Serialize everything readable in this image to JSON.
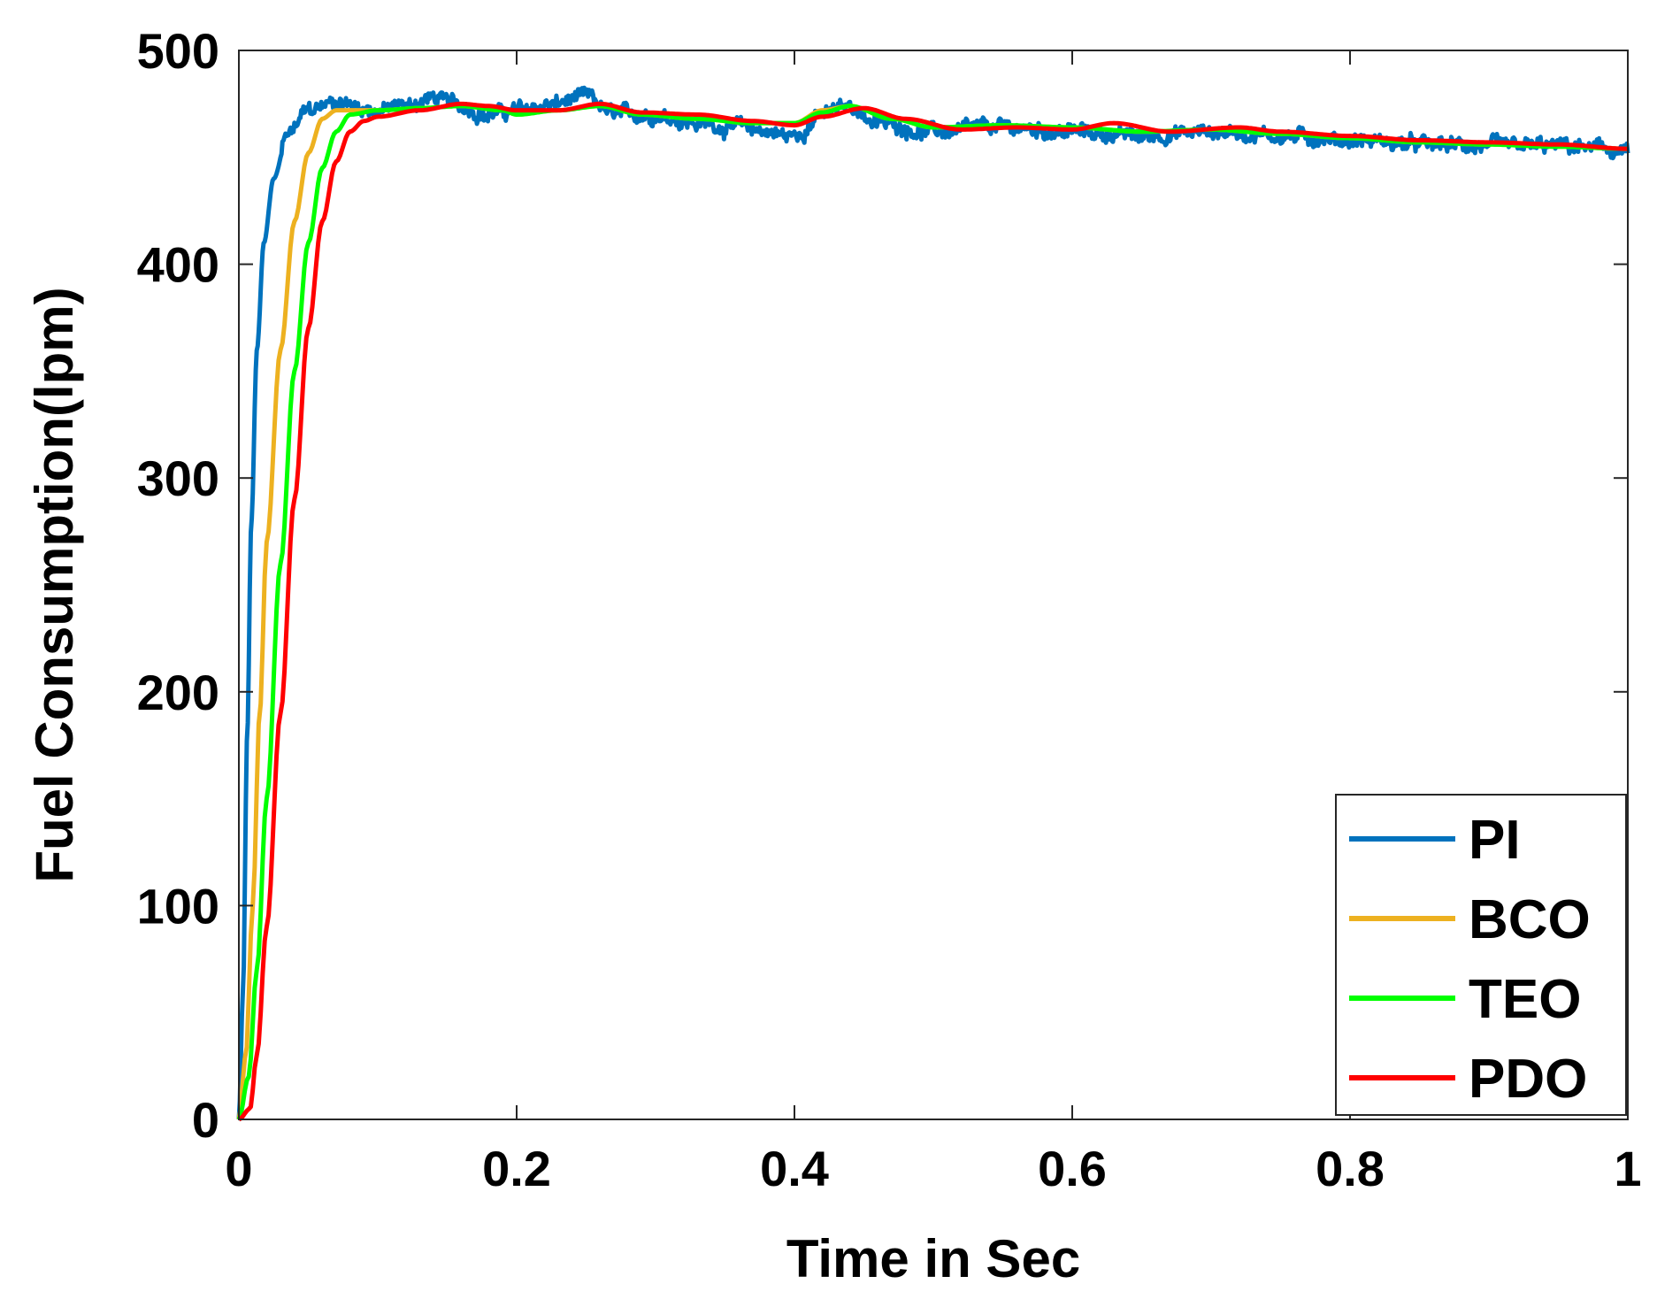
{
  "chart_data": {
    "type": "line",
    "title": "",
    "xlabel": "Time in Sec",
    "ylabel": "Fuel Consumption(lpm)",
    "xlim": [
      0,
      1
    ],
    "ylim": [
      0,
      500
    ],
    "xticks": [
      0,
      0.2,
      0.4,
      0.6,
      0.8,
      1
    ],
    "xtick_labels": [
      "0",
      "0.2",
      "0.4",
      "0.6",
      "0.8",
      "1"
    ],
    "yticks": [
      0,
      100,
      200,
      300,
      400,
      500
    ],
    "ytick_labels": [
      "0",
      "100",
      "200",
      "300",
      "400",
      "500"
    ],
    "grid": false,
    "legend_position": "bottom-right",
    "series": [
      {
        "name": "PI",
        "color": "#0072BD",
        "noisy": true,
        "points": [
          [
            0,
            0
          ],
          [
            0.003,
            60
          ],
          [
            0.006,
            180
          ],
          [
            0.009,
            280
          ],
          [
            0.013,
            360
          ],
          [
            0.018,
            410
          ],
          [
            0.025,
            440
          ],
          [
            0.035,
            460
          ],
          [
            0.05,
            472
          ],
          [
            0.07,
            476
          ],
          [
            0.1,
            472
          ],
          [
            0.12,
            474
          ],
          [
            0.14,
            478
          ],
          [
            0.16,
            474
          ],
          [
            0.18,
            470
          ],
          [
            0.2,
            472
          ],
          [
            0.22,
            474
          ],
          [
            0.25,
            478
          ],
          [
            0.27,
            470
          ],
          [
            0.3,
            470
          ],
          [
            0.33,
            466
          ],
          [
            0.36,
            464
          ],
          [
            0.4,
            460
          ],
          [
            0.42,
            470
          ],
          [
            0.44,
            474
          ],
          [
            0.46,
            466
          ],
          [
            0.5,
            462
          ],
          [
            0.55,
            464
          ],
          [
            0.6,
            462
          ],
          [
            0.65,
            460
          ],
          [
            0.7,
            462
          ],
          [
            0.75,
            460
          ],
          [
            0.8,
            458
          ],
          [
            0.85,
            456
          ],
          [
            0.9,
            455
          ],
          [
            0.95,
            455
          ],
          [
            1.0,
            453
          ]
        ]
      },
      {
        "name": "BCO",
        "color": "#EDB120",
        "noisy": false,
        "points": [
          [
            0,
            0
          ],
          [
            0.005,
            30
          ],
          [
            0.01,
            100
          ],
          [
            0.015,
            190
          ],
          [
            0.02,
            270
          ],
          [
            0.03,
            360
          ],
          [
            0.04,
            420
          ],
          [
            0.05,
            452
          ],
          [
            0.06,
            468
          ],
          [
            0.07,
            472
          ],
          [
            0.1,
            472
          ],
          [
            0.13,
            473
          ],
          [
            0.16,
            474
          ],
          [
            0.19,
            472
          ],
          [
            0.2,
            470
          ],
          [
            0.23,
            472
          ],
          [
            0.26,
            474
          ],
          [
            0.29,
            470
          ],
          [
            0.33,
            468
          ],
          [
            0.37,
            466
          ],
          [
            0.4,
            466
          ],
          [
            0.42,
            472
          ],
          [
            0.44,
            474
          ],
          [
            0.47,
            468
          ],
          [
            0.5,
            464
          ],
          [
            0.55,
            465
          ],
          [
            0.6,
            464
          ],
          [
            0.65,
            462
          ],
          [
            0.7,
            463
          ],
          [
            0.75,
            461
          ],
          [
            0.8,
            459
          ],
          [
            0.85,
            457
          ],
          [
            0.9,
            456
          ],
          [
            0.95,
            455
          ],
          [
            1.0,
            454
          ]
        ]
      },
      {
        "name": "TEO",
        "color": "#00FF00",
        "noisy": false,
        "points": [
          [
            0,
            0
          ],
          [
            0.007,
            20
          ],
          [
            0.013,
            70
          ],
          [
            0.02,
            150
          ],
          [
            0.03,
            260
          ],
          [
            0.04,
            350
          ],
          [
            0.05,
            410
          ],
          [
            0.06,
            445
          ],
          [
            0.07,
            462
          ],
          [
            0.08,
            470
          ],
          [
            0.1,
            472
          ],
          [
            0.13,
            473
          ],
          [
            0.16,
            474
          ],
          [
            0.19,
            472
          ],
          [
            0.2,
            470
          ],
          [
            0.23,
            472
          ],
          [
            0.26,
            474
          ],
          [
            0.29,
            470
          ],
          [
            0.33,
            468
          ],
          [
            0.37,
            466
          ],
          [
            0.4,
            466
          ],
          [
            0.42,
            471
          ],
          [
            0.44,
            474
          ],
          [
            0.47,
            468
          ],
          [
            0.5,
            464
          ],
          [
            0.55,
            465
          ],
          [
            0.6,
            464
          ],
          [
            0.65,
            462
          ],
          [
            0.7,
            463
          ],
          [
            0.75,
            461
          ],
          [
            0.8,
            459
          ],
          [
            0.85,
            457
          ],
          [
            0.9,
            456
          ],
          [
            0.95,
            455
          ],
          [
            1.0,
            454
          ]
        ]
      },
      {
        "name": "PDO",
        "color": "#FF0000",
        "noisy": false,
        "points": [
          [
            0,
            0
          ],
          [
            0.008,
            5
          ],
          [
            0.013,
            30
          ],
          [
            0.02,
            90
          ],
          [
            0.03,
            190
          ],
          [
            0.04,
            290
          ],
          [
            0.05,
            370
          ],
          [
            0.06,
            420
          ],
          [
            0.07,
            448
          ],
          [
            0.08,
            462
          ],
          [
            0.09,
            467
          ],
          [
            0.1,
            469
          ],
          [
            0.13,
            472
          ],
          [
            0.16,
            475
          ],
          [
            0.18,
            474
          ],
          [
            0.2,
            472
          ],
          [
            0.23,
            472
          ],
          [
            0.26,
            475
          ],
          [
            0.29,
            471
          ],
          [
            0.33,
            470
          ],
          [
            0.37,
            467
          ],
          [
            0.4,
            465
          ],
          [
            0.42,
            469
          ],
          [
            0.45,
            473
          ],
          [
            0.48,
            468
          ],
          [
            0.52,
            463
          ],
          [
            0.56,
            464
          ],
          [
            0.6,
            463
          ],
          [
            0.63,
            466
          ],
          [
            0.67,
            462
          ],
          [
            0.72,
            464
          ],
          [
            0.75,
            462
          ],
          [
            0.8,
            460
          ],
          [
            0.85,
            458
          ],
          [
            0.9,
            457
          ],
          [
            0.95,
            456
          ],
          [
            1.0,
            454
          ]
        ]
      }
    ]
  }
}
